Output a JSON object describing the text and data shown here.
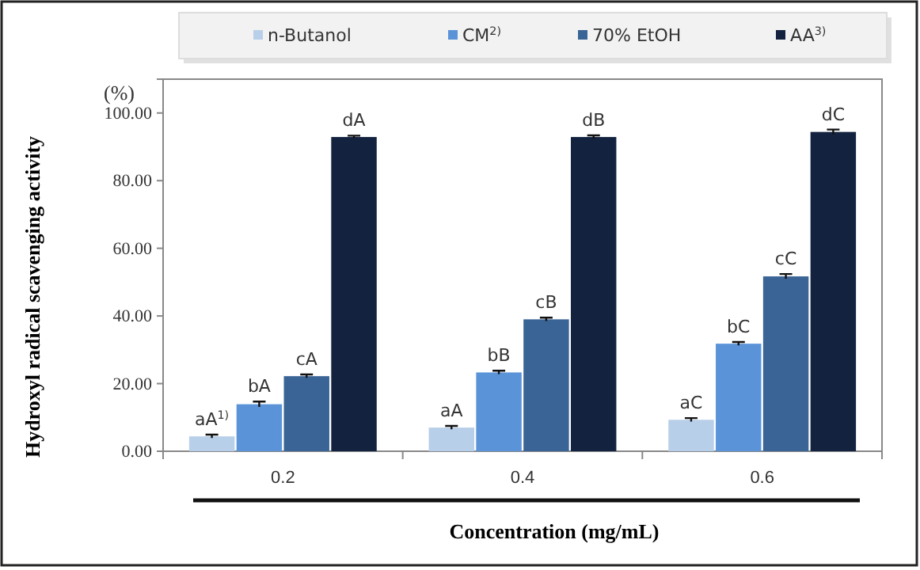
{
  "chart_data": {
    "type": "bar",
    "xlabel": "Concentration (mg/mL)",
    "ylabel": "Hydroxyl radical scavenging activity",
    "annotations": [
      "(%)",
      "aA$^{1)}$",
      "aA",
      "aC",
      "bA",
      "bB",
      "bC",
      "cA",
      "cB",
      "cC",
      "dA",
      "dB",
      "dC"
    ],
    "categories": [
      "0.2",
      "0.4",
      "0.6"
    ],
    "series": [
      {
        "name": "n-Butanol",
        "color": "#b8cfe9",
        "values": [
          4.4,
          7.0,
          9.3
        ],
        "errors": [
          0.5,
          0.5,
          0.5
        ]
      },
      {
        "name": "CM$^{2)}$",
        "color": "#5b93d9",
        "values": [
          13.9,
          23.3,
          31.8
        ],
        "errors": [
          0.8,
          0.5,
          0.5
        ]
      },
      {
        "name": "70% EtOH",
        "color": "#3a6496",
        "values": [
          22.2,
          39.0,
          51.7
        ],
        "errors": [
          0.5,
          0.5,
          0.7
        ]
      },
      {
        "name": "AA$^{3)}$",
        "color": "#13233f",
        "values": [
          92.9,
          92.9,
          94.4
        ],
        "errors": [
          0.4,
          0.5,
          0.7
        ]
      }
    ],
    "ylim": [
      0,
      110
    ],
    "yticks": [
      {
        "value": 0,
        "label": "0.00"
      },
      {
        "value": 20,
        "label": "20.00"
      },
      {
        "value": 40,
        "label": "40.00"
      },
      {
        "value": 60,
        "label": "60.00"
      },
      {
        "value": 80,
        "label": "80.00"
      },
      {
        "value": 100,
        "label": "100.00"
      }
    ],
    "grid": false,
    "legend": "top"
  }
}
